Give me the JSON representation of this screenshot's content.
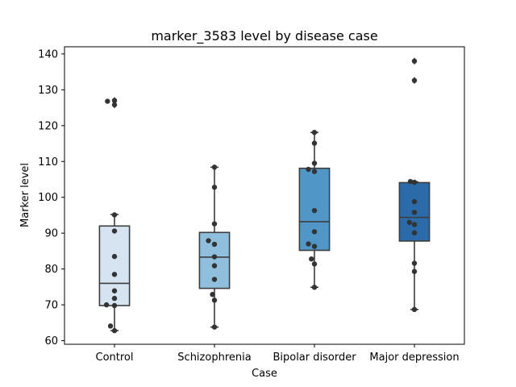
{
  "chart_data": {
    "type": "box",
    "title": "marker_3583 level by disease case",
    "xlabel": "Case",
    "ylabel": "Marker level",
    "ylim": [
      59,
      142
    ],
    "yticks": [
      60,
      70,
      80,
      90,
      100,
      110,
      120,
      130,
      140
    ],
    "categories": [
      "Control",
      "Schizophrenia",
      "Bipolar disorder",
      "Major depression"
    ],
    "colors": [
      "#d6e4f2",
      "#8fbfdd",
      "#5096c6",
      "#2c6ba9"
    ],
    "boxes": [
      {
        "q1": 69.8,
        "median": 76.0,
        "q3": 92.0,
        "whisker_low": 62.8,
        "whisker_high": 95.2,
        "outliers": [
          126.8,
          127.0,
          125.8
        ]
      },
      {
        "q1": 74.6,
        "median": 83.3,
        "q3": 90.2,
        "whisker_low": 63.8,
        "whisker_high": 108.4,
        "outliers": []
      },
      {
        "q1": 85.2,
        "median": 93.2,
        "q3": 108.1,
        "whisker_low": 74.9,
        "whisker_high": 118.1,
        "outliers": []
      },
      {
        "q1": 87.8,
        "median": 94.4,
        "q3": 104.1,
        "whisker_low": 68.7,
        "whisker_high": 104.3,
        "outliers": [
          138.0,
          132.6
        ]
      }
    ],
    "points": [
      [
        {
          "dx": -0.07,
          "y": 126.8
        },
        {
          "dx": 0.0,
          "y": 127.0
        },
        {
          "dx": 0.0,
          "y": 125.8
        },
        {
          "dx": 0.0,
          "y": 95.1
        },
        {
          "dx": 0.0,
          "y": 90.6
        },
        {
          "dx": 0.0,
          "y": 83.5
        },
        {
          "dx": 0.0,
          "y": 78.5
        },
        {
          "dx": 0.0,
          "y": 73.9
        },
        {
          "dx": 0.0,
          "y": 71.8
        },
        {
          "dx": -0.08,
          "y": 70.0
        },
        {
          "dx": 0.0,
          "y": 69.8
        },
        {
          "dx": -0.04,
          "y": 64.1
        },
        {
          "dx": 0.0,
          "y": 62.8
        }
      ],
      [
        {
          "dx": 0.0,
          "y": 108.4
        },
        {
          "dx": 0.0,
          "y": 102.8
        },
        {
          "dx": 0.0,
          "y": 92.6
        },
        {
          "dx": -0.06,
          "y": 87.9
        },
        {
          "dx": 0.0,
          "y": 86.9
        },
        {
          "dx": 0.0,
          "y": 83.4
        },
        {
          "dx": 0.0,
          "y": 80.9
        },
        {
          "dx": 0.0,
          "y": 77.1
        },
        {
          "dx": -0.02,
          "y": 72.9
        },
        {
          "dx": 0.0,
          "y": 71.3
        },
        {
          "dx": 0.0,
          "y": 63.8
        }
      ],
      [
        {
          "dx": 0.0,
          "y": 118.1
        },
        {
          "dx": 0.0,
          "y": 115.1
        },
        {
          "dx": 0.0,
          "y": 109.5
        },
        {
          "dx": -0.06,
          "y": 107.8
        },
        {
          "dx": 0.0,
          "y": 107.2
        },
        {
          "dx": 0.0,
          "y": 96.3
        },
        {
          "dx": 0.0,
          "y": 90.4
        },
        {
          "dx": -0.06,
          "y": 87.0
        },
        {
          "dx": 0.0,
          "y": 86.3
        },
        {
          "dx": -0.03,
          "y": 82.8
        },
        {
          "dx": 0.0,
          "y": 81.4
        },
        {
          "dx": 0.0,
          "y": 74.9
        }
      ],
      [
        {
          "dx": 0.0,
          "y": 138.0
        },
        {
          "dx": 0.0,
          "y": 132.6
        },
        {
          "dx": -0.04,
          "y": 104.4
        },
        {
          "dx": 0.0,
          "y": 104.2
        },
        {
          "dx": 0.0,
          "y": 98.8
        },
        {
          "dx": 0.0,
          "y": 95.8
        },
        {
          "dx": -0.05,
          "y": 93.0
        },
        {
          "dx": 0.0,
          "y": 92.4
        },
        {
          "dx": 0.0,
          "y": 90.1
        },
        {
          "dx": 0.0,
          "y": 81.6
        },
        {
          "dx": 0.0,
          "y": 79.3
        },
        {
          "dx": 0.0,
          "y": 68.7
        }
      ]
    ]
  }
}
